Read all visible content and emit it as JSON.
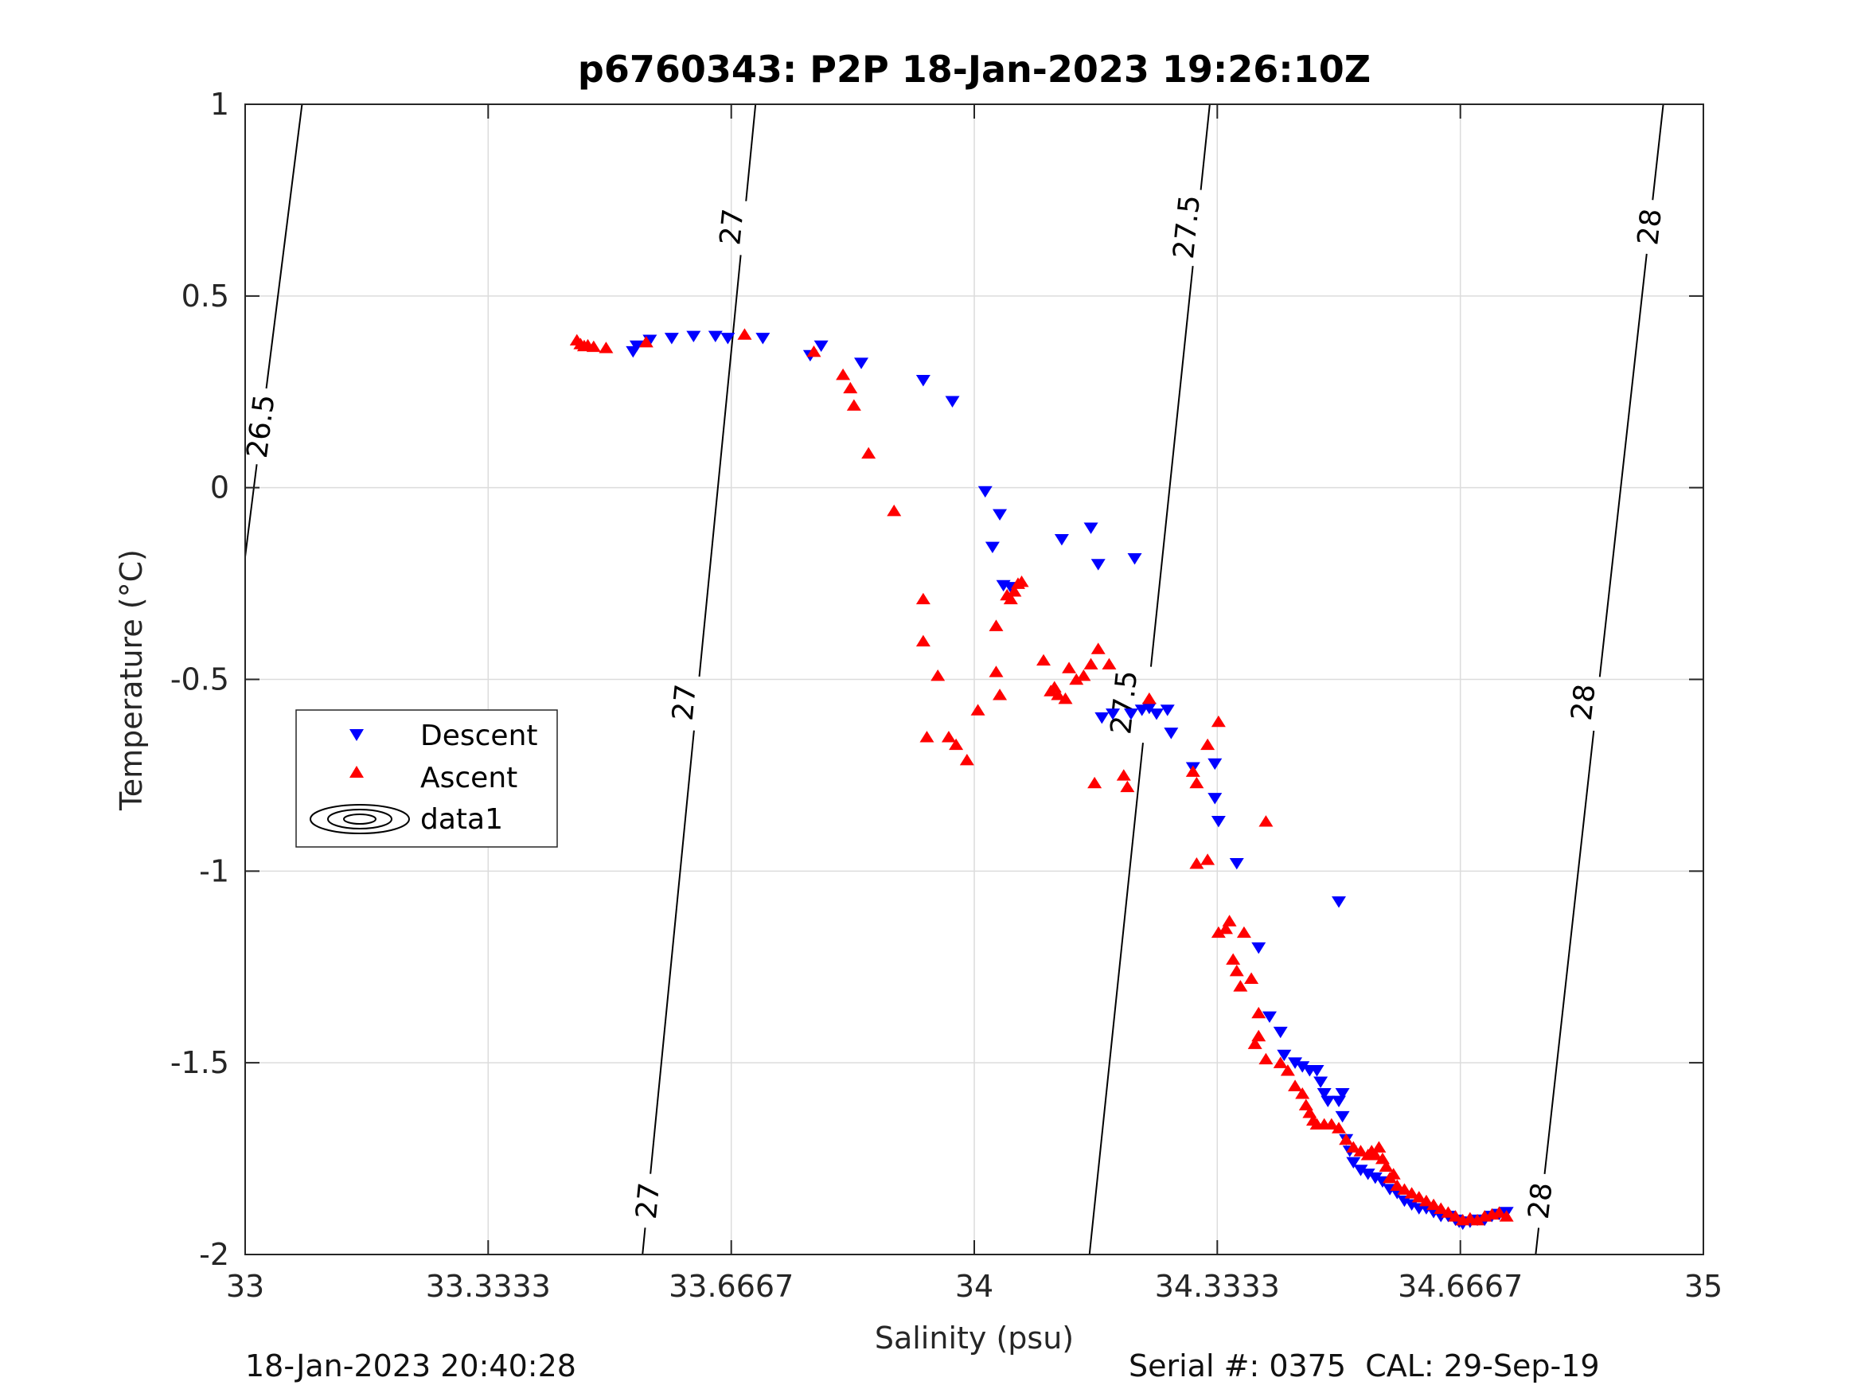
{
  "footer": {
    "timestamp": "18-Jan-2023 20:40:28",
    "serial": "Serial #: 0375  CAL: 29-Sep-19"
  },
  "colors": {
    "descent": "#0000ff",
    "ascent": "#ff0000",
    "contour": "#000000",
    "grid": "#dcdcdc"
  },
  "chart_data": {
    "type": "scatter",
    "title": "p6760343: P2P 18-Jan-2023 19:26:10Z",
    "xlabel": "Salinity (psu)",
    "ylabel": "Temperature (°C)",
    "xlim": [
      33,
      35
    ],
    "ylim": [
      -2,
      1
    ],
    "x_ticks": [
      "33",
      "33.3333",
      "33.6667",
      "34",
      "34.3333",
      "34.6667",
      "35"
    ],
    "x_tick_values": [
      33,
      33.3333,
      33.6667,
      34,
      34.3333,
      34.6667,
      35
    ],
    "y_ticks": [
      "-2",
      "-1.5",
      "-1",
      "-0.5",
      "0",
      "0.5",
      "1"
    ],
    "y_tick_values": [
      -2,
      -1.5,
      -1,
      -0.5,
      0,
      0.5,
      1
    ],
    "grid": true,
    "legend": {
      "placement": "middle-left",
      "entries": [
        "Descent",
        "Ascent",
        "data1"
      ]
    },
    "contours": [
      {
        "label": "26.5",
        "line": [
          [
            33.0,
            -0.18
          ],
          [
            33.078,
            1.0
          ]
        ],
        "labels_at": [
          {
            "text": "26.5",
            "x": 33.022,
            "y": 0.16
          }
        ]
      },
      {
        "label": "27",
        "line": [
          [
            33.545,
            -2.0
          ],
          [
            33.7,
            1.0
          ]
        ],
        "labels_at": [
          {
            "text": "27",
            "x": 33.553,
            "y": -1.86
          },
          {
            "text": "27",
            "x": 33.603,
            "y": -0.56
          },
          {
            "text": "27",
            "x": 33.668,
            "y": 0.68
          }
        ]
      },
      {
        "label": "27.5",
        "line": [
          [
            34.158,
            -2.0
          ],
          [
            34.323,
            1.0
          ]
        ],
        "labels_at": [
          {
            "text": "27.5",
            "x": 34.206,
            "y": -0.56
          },
          {
            "text": "27.5",
            "x": 34.292,
            "y": 0.68
          }
        ]
      },
      {
        "label": "28",
        "line": [
          [
            34.77,
            -2.0
          ],
          [
            34.945,
            1.0
          ]
        ],
        "labels_at": [
          {
            "text": "28",
            "x": 34.777,
            "y": -1.86
          },
          {
            "text": "28",
            "x": 34.836,
            "y": -0.56
          },
          {
            "text": "28",
            "x": 34.927,
            "y": 0.68
          }
        ]
      }
    ],
    "series": [
      {
        "name": "Descent",
        "marker": "triangle-down",
        "points": [
          [
            33.532,
            0.355
          ],
          [
            33.537,
            0.37
          ],
          [
            33.555,
            0.385
          ],
          [
            33.585,
            0.39
          ],
          [
            33.615,
            0.395
          ],
          [
            33.645,
            0.395
          ],
          [
            33.662,
            0.39
          ],
          [
            33.71,
            0.39
          ],
          [
            33.775,
            0.345
          ],
          [
            33.79,
            0.37
          ],
          [
            33.845,
            0.325
          ],
          [
            33.93,
            0.28
          ],
          [
            33.97,
            0.225
          ],
          [
            34.015,
            -0.01
          ],
          [
            34.035,
            -0.07
          ],
          [
            34.025,
            -0.155
          ],
          [
            34.04,
            -0.255
          ],
          [
            34.05,
            -0.26
          ],
          [
            34.12,
            -0.135
          ],
          [
            34.16,
            -0.105
          ],
          [
            34.17,
            -0.2
          ],
          [
            34.22,
            -0.185
          ],
          [
            34.175,
            -0.6
          ],
          [
            34.19,
            -0.59
          ],
          [
            34.215,
            -0.59
          ],
          [
            34.23,
            -0.58
          ],
          [
            34.24,
            -0.575
          ],
          [
            34.25,
            -0.59
          ],
          [
            34.265,
            -0.58
          ],
          [
            34.27,
            -0.64
          ],
          [
            34.33,
            -0.72
          ],
          [
            34.3,
            -0.73
          ],
          [
            34.33,
            -0.81
          ],
          [
            34.335,
            -0.87
          ],
          [
            34.36,
            -0.98
          ],
          [
            34.39,
            -1.2
          ],
          [
            34.405,
            -1.38
          ],
          [
            34.42,
            -1.42
          ],
          [
            34.425,
            -1.48
          ],
          [
            34.44,
            -1.5
          ],
          [
            34.45,
            -1.51
          ],
          [
            34.46,
            -1.52
          ],
          [
            34.47,
            -1.52
          ],
          [
            34.475,
            -1.55
          ],
          [
            34.48,
            -1.58
          ],
          [
            34.485,
            -1.6
          ],
          [
            34.5,
            -1.6
          ],
          [
            34.505,
            -1.58
          ],
          [
            34.505,
            -1.64
          ],
          [
            34.5,
            -1.08
          ],
          [
            34.51,
            -1.7
          ],
          [
            34.515,
            -1.73
          ],
          [
            34.52,
            -1.76
          ],
          [
            34.53,
            -1.78
          ],
          [
            34.54,
            -1.79
          ],
          [
            34.55,
            -1.8
          ],
          [
            34.56,
            -1.81
          ],
          [
            34.57,
            -1.83
          ],
          [
            34.58,
            -1.84
          ],
          [
            34.59,
            -1.86
          ],
          [
            34.6,
            -1.87
          ],
          [
            34.61,
            -1.88
          ],
          [
            34.62,
            -1.88
          ],
          [
            34.63,
            -1.89
          ],
          [
            34.64,
            -1.9
          ],
          [
            34.65,
            -1.9
          ],
          [
            34.66,
            -1.91
          ],
          [
            34.665,
            -1.915
          ],
          [
            34.67,
            -1.92
          ],
          [
            34.68,
            -1.915
          ],
          [
            34.69,
            -1.91
          ],
          [
            34.7,
            -1.91
          ],
          [
            34.71,
            -1.9
          ],
          [
            34.72,
            -1.895
          ],
          [
            34.73,
            -1.89
          ]
        ]
      },
      {
        "name": "Ascent",
        "marker": "triangle-up",
        "points": [
          [
            33.455,
            0.385
          ],
          [
            33.46,
            0.375
          ],
          [
            33.465,
            0.37
          ],
          [
            33.47,
            0.372
          ],
          [
            33.478,
            0.368
          ],
          [
            33.495,
            0.365
          ],
          [
            33.55,
            0.38
          ],
          [
            33.685,
            0.4
          ],
          [
            33.78,
            0.355
          ],
          [
            33.82,
            0.295
          ],
          [
            33.83,
            0.26
          ],
          [
            33.835,
            0.215
          ],
          [
            33.855,
            0.09
          ],
          [
            33.89,
            -0.06
          ],
          [
            33.93,
            -0.29
          ],
          [
            33.93,
            -0.4
          ],
          [
            33.95,
            -0.49
          ],
          [
            33.935,
            -0.65
          ],
          [
            33.965,
            -0.65
          ],
          [
            33.975,
            -0.67
          ],
          [
            33.99,
            -0.71
          ],
          [
            34.005,
            -0.58
          ],
          [
            34.03,
            -0.36
          ],
          [
            34.03,
            -0.48
          ],
          [
            34.035,
            -0.54
          ],
          [
            34.045,
            -0.28
          ],
          [
            34.05,
            -0.29
          ],
          [
            34.055,
            -0.27
          ],
          [
            34.06,
            -0.25
          ],
          [
            34.065,
            -0.245
          ],
          [
            34.095,
            -0.45
          ],
          [
            34.105,
            -0.53
          ],
          [
            34.11,
            -0.52
          ],
          [
            34.115,
            -0.54
          ],
          [
            34.125,
            -0.55
          ],
          [
            34.13,
            -0.47
          ],
          [
            34.14,
            -0.5
          ],
          [
            34.15,
            -0.49
          ],
          [
            34.16,
            -0.46
          ],
          [
            34.17,
            -0.42
          ],
          [
            34.185,
            -0.46
          ],
          [
            34.165,
            -0.77
          ],
          [
            34.205,
            -0.75
          ],
          [
            34.21,
            -0.78
          ],
          [
            34.24,
            -0.55
          ],
          [
            34.3,
            -0.74
          ],
          [
            34.305,
            -0.98
          ],
          [
            34.32,
            -0.97
          ],
          [
            34.32,
            -0.67
          ],
          [
            34.335,
            -0.61
          ],
          [
            34.305,
            -0.77
          ],
          [
            34.335,
            -1.16
          ],
          [
            34.345,
            -1.15
          ],
          [
            34.35,
            -1.13
          ],
          [
            34.355,
            -1.23
          ],
          [
            34.36,
            -1.26
          ],
          [
            34.365,
            -1.3
          ],
          [
            34.37,
            -1.16
          ],
          [
            34.38,
            -1.28
          ],
          [
            34.385,
            -1.45
          ],
          [
            34.39,
            -1.43
          ],
          [
            34.39,
            -1.37
          ],
          [
            34.4,
            -0.87
          ],
          [
            34.4,
            -1.49
          ],
          [
            34.42,
            -1.5
          ],
          [
            34.43,
            -1.52
          ],
          [
            34.44,
            -1.56
          ],
          [
            34.45,
            -1.58
          ],
          [
            34.455,
            -1.61
          ],
          [
            34.46,
            -1.63
          ],
          [
            34.465,
            -1.65
          ],
          [
            34.47,
            -1.66
          ],
          [
            34.48,
            -1.66
          ],
          [
            34.49,
            -1.66
          ],
          [
            34.5,
            -1.67
          ],
          [
            34.51,
            -1.7
          ],
          [
            34.52,
            -1.72
          ],
          [
            34.53,
            -1.73
          ],
          [
            34.54,
            -1.74
          ],
          [
            34.545,
            -1.73
          ],
          [
            34.55,
            -1.74
          ],
          [
            34.555,
            -1.72
          ],
          [
            34.56,
            -1.75
          ],
          [
            34.565,
            -1.77
          ],
          [
            34.57,
            -1.8
          ],
          [
            34.575,
            -1.79
          ],
          [
            34.58,
            -1.82
          ],
          [
            34.59,
            -1.83
          ],
          [
            34.6,
            -1.84
          ],
          [
            34.61,
            -1.85
          ],
          [
            34.62,
            -1.86
          ],
          [
            34.63,
            -1.87
          ],
          [
            34.64,
            -1.88
          ],
          [
            34.65,
            -1.89
          ],
          [
            34.66,
            -1.9
          ],
          [
            34.67,
            -1.91
          ],
          [
            34.68,
            -1.905
          ],
          [
            34.69,
            -1.91
          ],
          [
            34.7,
            -1.9
          ],
          [
            34.71,
            -1.895
          ],
          [
            34.72,
            -1.89
          ],
          [
            34.73,
            -1.9
          ]
        ]
      }
    ]
  }
}
